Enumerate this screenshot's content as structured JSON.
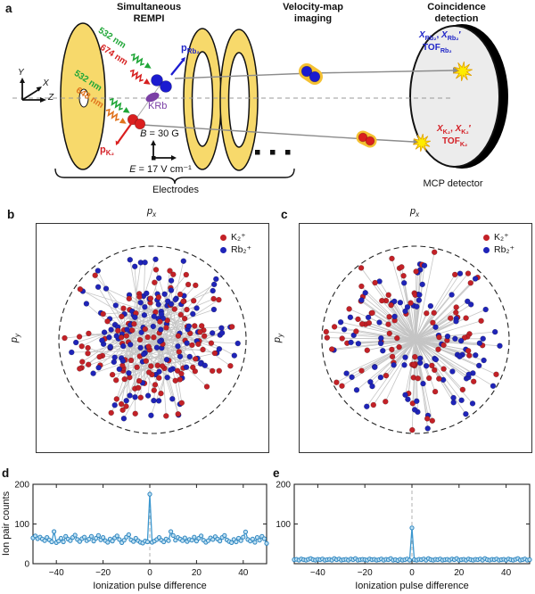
{
  "panel_a": {
    "label": "a",
    "headings": {
      "rempi_line1": "Simultaneous",
      "rempi_line2": "REMPI",
      "vmi_line1": "Velocity-map",
      "vmi_line2": "imaging",
      "coin_line1": "Coincidence",
      "coin_line2": "detection"
    },
    "coord_axes": {
      "x": "X",
      "y": "Y",
      "z": "Z"
    },
    "lasers": [
      {
        "label": "532 nm",
        "color": "#1fa637"
      },
      {
        "label": "674 nm",
        "color": "#d62020"
      },
      {
        "label": "532 nm",
        "color": "#1fa637"
      },
      {
        "label": "648 nm",
        "color": "#e0731d"
      }
    ],
    "krb_label": "KRb",
    "p_rb2_html": "<b>p</b><sub>Rb₂</sub>",
    "p_k2_html": "<b>p</b><sub>K₂</sub>",
    "b_field_html": "<i>B</i> = 30 G",
    "e_field_html": "<i>E</i> = 17 V cm⁻¹",
    "electrodes_label": "Electrodes",
    "mcp_label": "MCP detector",
    "detector_rb_line1_html": "<i>X</i><sub>Rb₂</sub>, <i>X</i><sub>Rb₂</sub>′",
    "detector_rb_line2_html": "TOF<sub>Rb₂</sub>",
    "detector_k_line1_html": "<i>X</i><sub>K₂</sub>, <i>X</i><sub>K₂</sub>′",
    "detector_k_line2_html": "TOF<sub>K₂</sub>",
    "colors": {
      "electrode_yellow": "#f7d96b",
      "detector_face": "#ececec",
      "rb2_blue": "#1b1bd0",
      "k2_red": "#da1f1f",
      "krb_purple": "#7a3fa5",
      "beam_gray": "#8c8c8c",
      "glow_yellow": "#f5c132",
      "starburst_yellow": "#ffec00"
    }
  },
  "panel_b": {
    "label": "b"
  },
  "panel_c": {
    "label": "c"
  },
  "panel_d": {
    "label": "d"
  },
  "panel_e": {
    "label": "e"
  },
  "chart_data": [
    {
      "panel": "b",
      "type": "scatter",
      "xlabel_html": "<i>p</i><sub><i>x</i></sub>",
      "ylabel_html": "<i>p</i><sub><i>y</i></sub>",
      "legend": [
        {
          "label": "K₂⁺",
          "color": "#c32127"
        },
        {
          "label": "Rb₂⁺",
          "color": "#1f24b8"
        }
      ],
      "dashed_circle": true,
      "pair_line_color": "#c5c5c5",
      "points": {
        "mode": "random-chord-pairs",
        "n_pairs": 135,
        "seed": 7,
        "note": "all coincidence ion pairs (K2+ red, Rb2+ blue) joined by gray lines inside dashed momentum circle; unlabeled scatter reproduced statistically"
      }
    },
    {
      "panel": "c",
      "type": "scatter",
      "xlabel_html": "<i>p</i><sub><i>x</i></sub>",
      "ylabel_html": "<i>p</i><sub><i>y</i></sub>",
      "legend": [
        {
          "label": "K₂⁺",
          "color": "#c32127"
        },
        {
          "label": "Rb₂⁺",
          "color": "#1f24b8"
        }
      ],
      "dashed_circle": true,
      "pair_line_color": "#c5c5c5",
      "points": {
        "mode": "radial-back-to-back-pairs",
        "n_pairs": 95,
        "seed": 11,
        "note": "true pairs: back-to-back momenta, lines pass through center"
      }
    },
    {
      "panel": "d",
      "type": "line",
      "xlabel": "Ionization pulse difference",
      "ylabel": "Ion pair counts",
      "x_start": -50,
      "x_step": 1,
      "xticks": [
        -40,
        -20,
        0,
        20,
        40
      ],
      "yticks": [
        0,
        100,
        200
      ],
      "ytick_labels": [
        "0",
        "100",
        "200"
      ],
      "ylim": [
        0,
        200
      ],
      "zero_dashed_line": true,
      "line_color": "#3b97cf",
      "marker_fill": "#bfe0f2",
      "marker_edge": "#2f86c0",
      "values": [
        65,
        70,
        63,
        67,
        62,
        58,
        66,
        60,
        55,
        81,
        53,
        57,
        64,
        55,
        69,
        62,
        58,
        66,
        72,
        61,
        56,
        63,
        67,
        58,
        62,
        69,
        57,
        64,
        71,
        60,
        66,
        58,
        54,
        62,
        57,
        65,
        70,
        61,
        53,
        59,
        67,
        73,
        60,
        56,
        64,
        58,
        54,
        52,
        57,
        55,
        175,
        54,
        57,
        61,
        66,
        59,
        55,
        62,
        58,
        81,
        71,
        59,
        66,
        62,
        58,
        65,
        56,
        61,
        59,
        67,
        57,
        64,
        70,
        59,
        54,
        58,
        65,
        61,
        68,
        62,
        57,
        66,
        71,
        60,
        56,
        53,
        61,
        55,
        64,
        58,
        67,
        80,
        61,
        57,
        62,
        54,
        66,
        59,
        69,
        63,
        51
      ]
    },
    {
      "panel": "e",
      "type": "line",
      "xlabel": "Ionization pulse difference",
      "ylabel": "",
      "x_start": -50,
      "x_step": 1,
      "xticks": [
        -40,
        -20,
        0,
        20,
        40
      ],
      "yticks": [
        0,
        100,
        200
      ],
      "ytick_labels": [
        "",
        "100",
        "200"
      ],
      "ylim": [
        0,
        200
      ],
      "zero_dashed_line": true,
      "line_color": "#3b97cf",
      "marker_fill": "#bfe0f2",
      "marker_edge": "#2f86c0",
      "values": [
        10,
        11,
        9,
        12,
        10,
        9,
        11,
        13,
        10,
        9,
        11,
        10,
        12,
        9,
        10,
        11,
        9,
        13,
        10,
        12,
        9,
        10,
        11,
        9,
        12,
        10,
        13,
        9,
        10,
        11,
        10,
        9,
        12,
        10,
        11,
        9,
        10,
        12,
        9,
        11,
        10,
        13,
        9,
        10,
        8,
        11,
        9,
        10,
        12,
        9,
        90,
        10,
        9,
        11,
        10,
        12,
        9,
        13,
        10,
        9,
        11,
        10,
        12,
        9,
        10,
        11,
        9,
        12,
        10,
        13,
        9,
        10,
        11,
        9,
        12,
        10,
        9,
        11,
        10,
        12,
        9,
        13,
        10,
        9,
        11,
        10,
        12,
        9,
        10,
        11,
        9,
        12,
        10,
        9,
        11,
        13,
        9,
        10,
        12,
        9,
        10
      ]
    }
  ]
}
